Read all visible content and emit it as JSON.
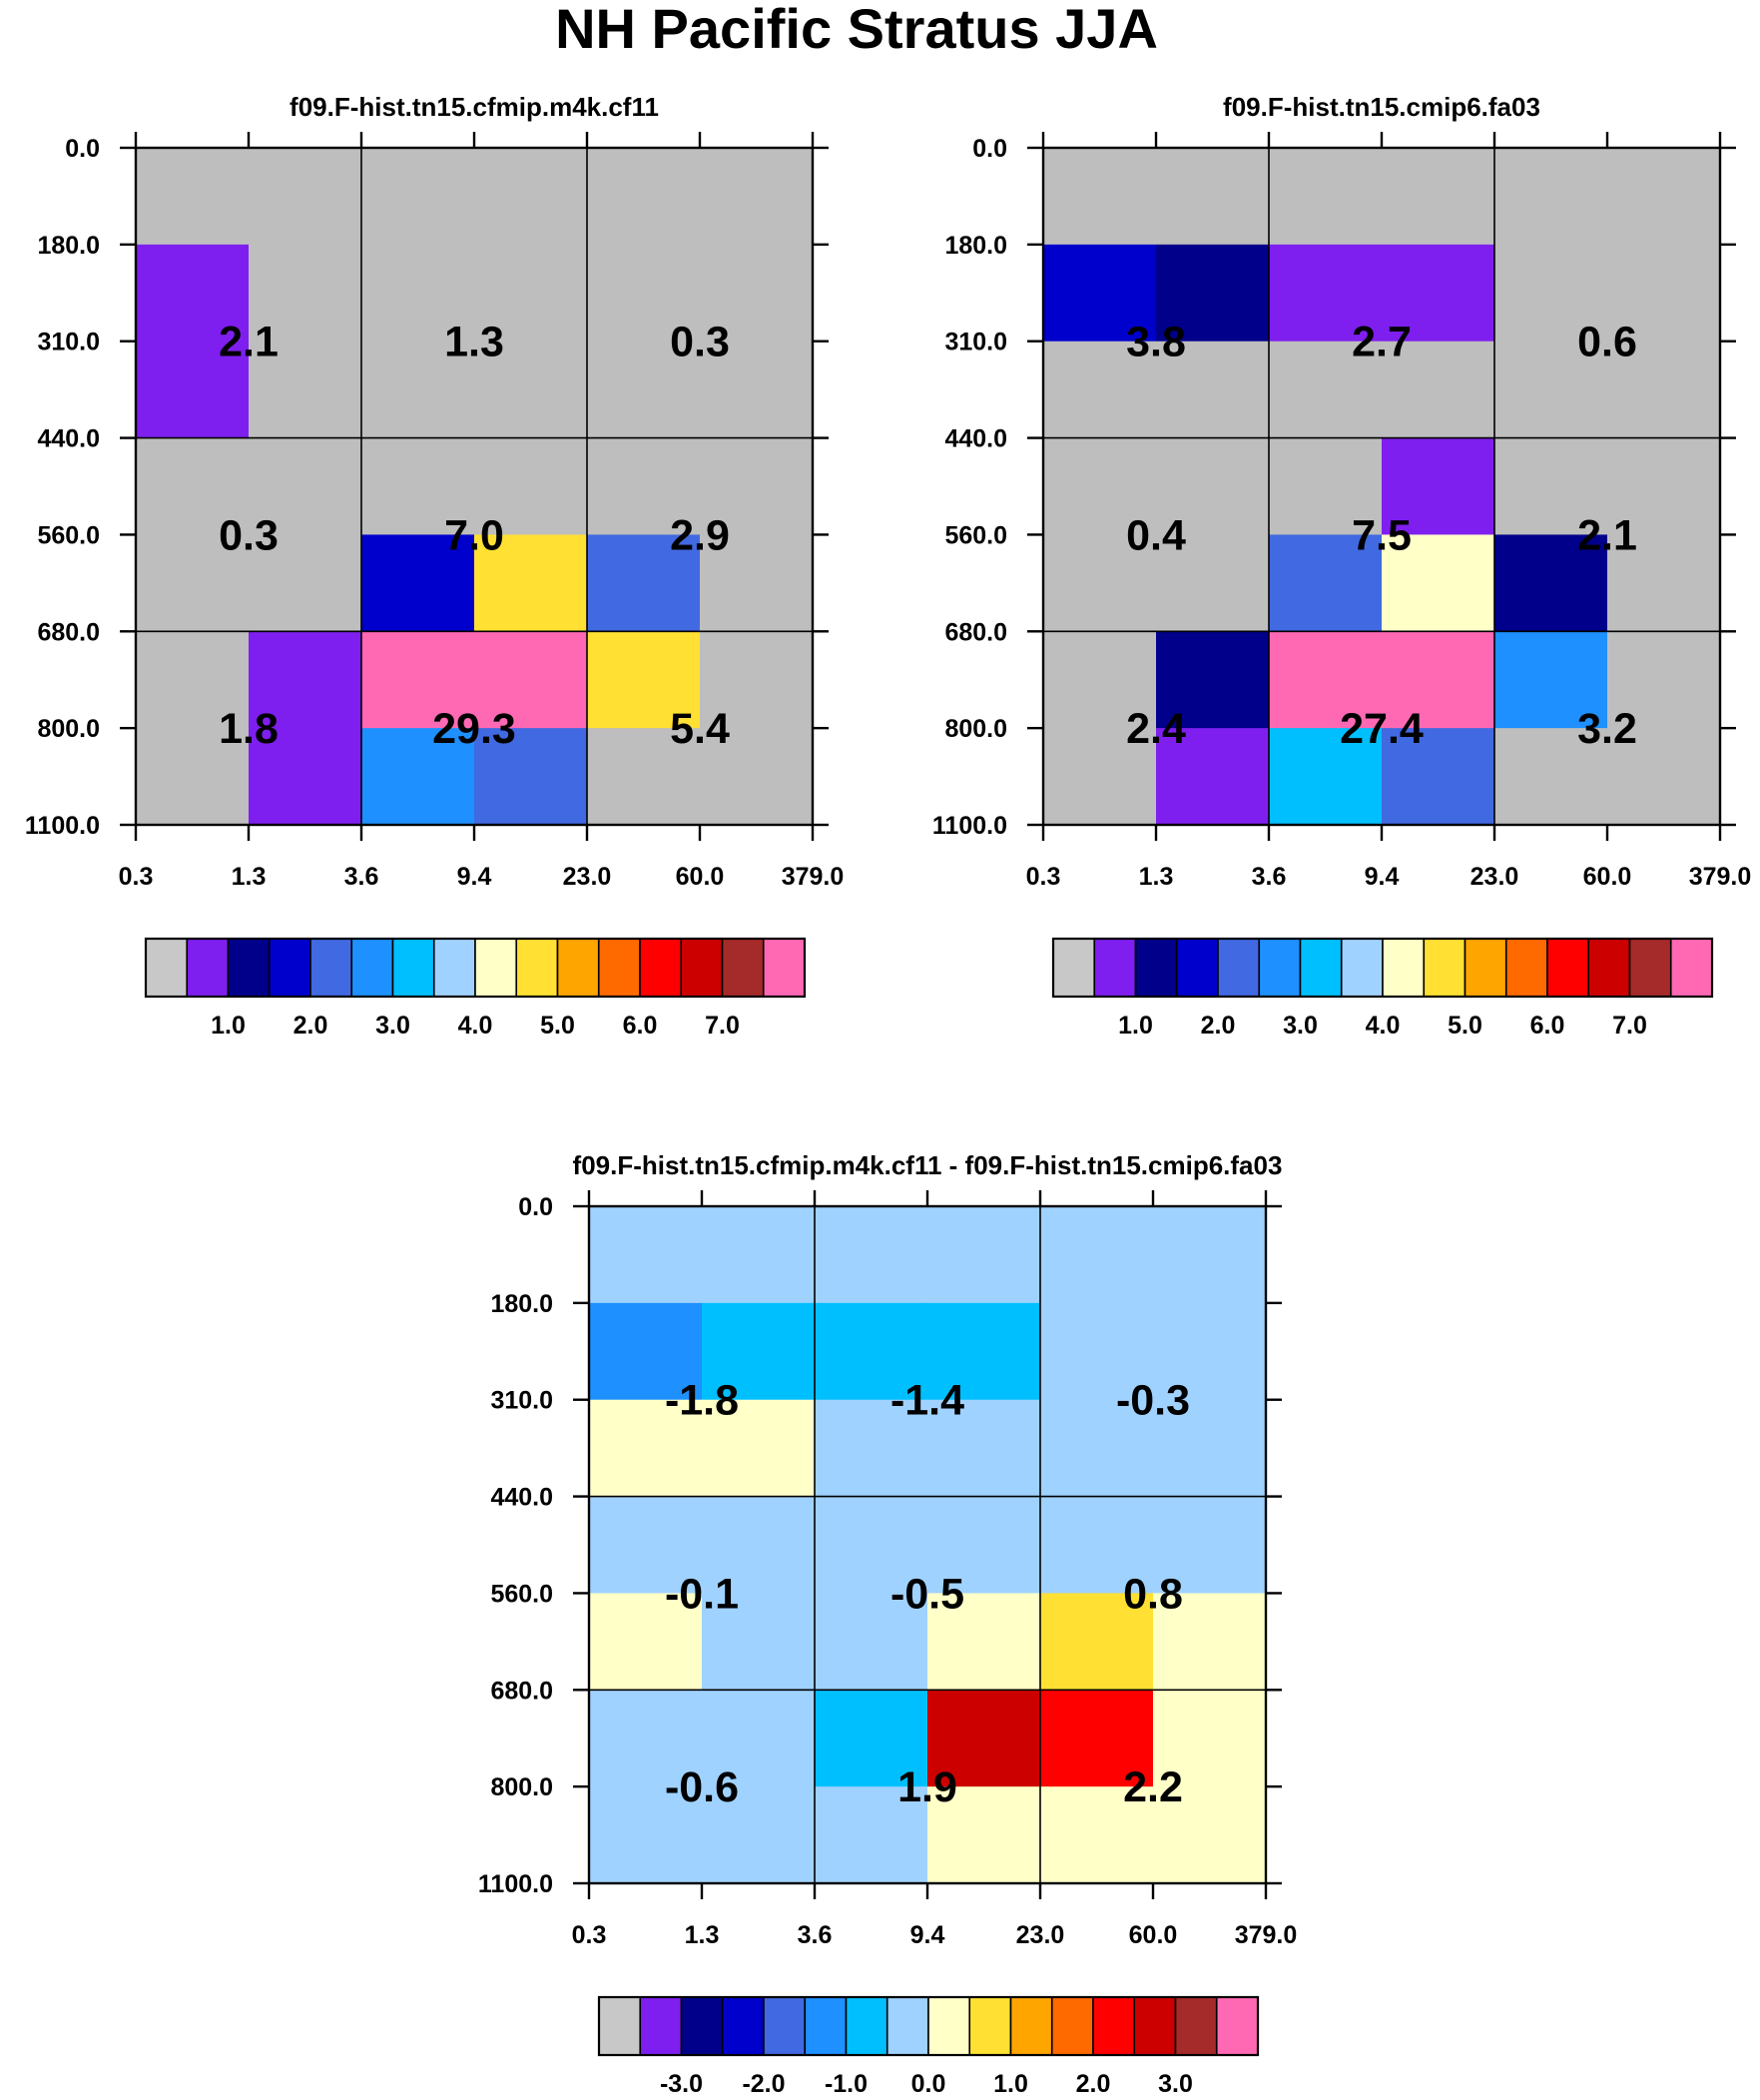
{
  "figure": {
    "title": "NH Pacific Stratus JJA"
  },
  "chart_data": [
    {
      "type": "heatmap",
      "title": "f09.F-hist.tn15.cfmip.m4k.cf11",
      "xlabel": "",
      "ylabel": "",
      "x_tick_labels": [
        "0.3",
        "1.3",
        "3.6",
        "9.4",
        "23.0",
        "60.0",
        "379.0"
      ],
      "y_tick_labels": [
        "0.0",
        "180.0",
        "310.0",
        "440.0",
        "560.0",
        "680.0",
        "800.0",
        "1100.0"
      ],
      "grid": true,
      "block_labels": [
        [
          "2.1",
          "1.3",
          "0.3"
        ],
        [
          "0.3",
          "7.0",
          "2.9"
        ],
        [
          "1.8",
          "29.3",
          "5.4"
        ]
      ],
      "cell_colors": [
        [
          "#BEBEBE",
          "#BEBEBE",
          "#BEBEBE",
          "#BEBEBE",
          "#BEBEBE",
          "#BEBEBE"
        ],
        [
          "#7F1FEF",
          "#BEBEBE",
          "#BEBEBE",
          "#BEBEBE",
          "#BEBEBE",
          "#BEBEBE"
        ],
        [
          "#7F1FEF",
          "#BEBEBE",
          "#BEBEBE",
          "#BEBEBE",
          "#BEBEBE",
          "#BEBEBE"
        ],
        [
          "#BEBEBE",
          "#BEBEBE",
          "#BEBEBE",
          "#BEBEBE",
          "#BEBEBE",
          "#BEBEBE"
        ],
        [
          "#BEBEBE",
          "#BEBEBE",
          "#0000CD",
          "#FFE033",
          "#4169E1",
          "#BEBEBE"
        ],
        [
          "#BEBEBE",
          "#7F1FEF",
          "#FF69B4",
          "#FF69B4",
          "#FFE033",
          "#BEBEBE"
        ],
        [
          "#BEBEBE",
          "#7F1FEF",
          "#1E90FF",
          "#4169E1",
          "#BEBEBE",
          "#BEBEBE"
        ]
      ],
      "colorbar": {
        "colors": [
          "#C8C8C8",
          "#7F1FEF",
          "#00008B",
          "#0000CD",
          "#4169E1",
          "#1E90FF",
          "#00BFFF",
          "#A0D2FF",
          "#FFFFC8",
          "#FFE033",
          "#FFA500",
          "#FF6A00",
          "#FF0000",
          "#CD0000",
          "#A52A2A",
          "#FF69B4"
        ],
        "labels": [
          "1.0",
          "2.0",
          "3.0",
          "4.0",
          "5.0",
          "6.0",
          "7.0"
        ],
        "label_start_boundary": 2,
        "label_step": 2
      }
    },
    {
      "type": "heatmap",
      "title": "f09.F-hist.tn15.cmip6.fa03",
      "xlabel": "",
      "ylabel": "",
      "x_tick_labels": [
        "0.3",
        "1.3",
        "3.6",
        "9.4",
        "23.0",
        "60.0",
        "379.0"
      ],
      "y_tick_labels": [
        "0.0",
        "180.0",
        "310.0",
        "440.0",
        "560.0",
        "680.0",
        "800.0",
        "1100.0"
      ],
      "grid": true,
      "block_labels": [
        [
          "3.8",
          "2.7",
          "0.6"
        ],
        [
          "0.4",
          "7.5",
          "2.1"
        ],
        [
          "2.4",
          "27.4",
          "3.2"
        ]
      ],
      "cell_colors": [
        [
          "#BEBEBE",
          "#BEBEBE",
          "#BEBEBE",
          "#BEBEBE",
          "#BEBEBE",
          "#BEBEBE"
        ],
        [
          "#0000CD",
          "#00008B",
          "#7F1FEF",
          "#7F1FEF",
          "#BEBEBE",
          "#BEBEBE"
        ],
        [
          "#BEBEBE",
          "#BEBEBE",
          "#BEBEBE",
          "#BEBEBE",
          "#BEBEBE",
          "#BEBEBE"
        ],
        [
          "#BEBEBE",
          "#BEBEBE",
          "#BEBEBE",
          "#7F1FEF",
          "#BEBEBE",
          "#BEBEBE"
        ],
        [
          "#BEBEBE",
          "#BEBEBE",
          "#4169E1",
          "#FFFFC8",
          "#00008B",
          "#BEBEBE"
        ],
        [
          "#BEBEBE",
          "#00008B",
          "#FF69B4",
          "#FF69B4",
          "#1E90FF",
          "#BEBEBE"
        ],
        [
          "#BEBEBE",
          "#7F1FEF",
          "#00BFFF",
          "#4169E1",
          "#BEBEBE",
          "#BEBEBE"
        ]
      ],
      "colorbar": {
        "colors": [
          "#C8C8C8",
          "#7F1FEF",
          "#00008B",
          "#0000CD",
          "#4169E1",
          "#1E90FF",
          "#00BFFF",
          "#A0D2FF",
          "#FFFFC8",
          "#FFE033",
          "#FFA500",
          "#FF6A00",
          "#FF0000",
          "#CD0000",
          "#A52A2A",
          "#FF69B4"
        ],
        "labels": [
          "1.0",
          "2.0",
          "3.0",
          "4.0",
          "5.0",
          "6.0",
          "7.0"
        ],
        "label_start_boundary": 2,
        "label_step": 2
      }
    },
    {
      "type": "heatmap",
      "title": "f09.F-hist.tn15.cfmip.m4k.cf11 - f09.F-hist.tn15.cmip6.fa03",
      "xlabel": "",
      "ylabel": "",
      "x_tick_labels": [
        "0.3",
        "1.3",
        "3.6",
        "9.4",
        "23.0",
        "60.0",
        "379.0"
      ],
      "y_tick_labels": [
        "0.0",
        "180.0",
        "310.0",
        "440.0",
        "560.0",
        "680.0",
        "800.0",
        "1100.0"
      ],
      "grid": true,
      "block_labels": [
        [
          "-1.8",
          "-1.4",
          "-0.3"
        ],
        [
          "-0.1",
          "-0.5",
          "0.8"
        ],
        [
          "-0.6",
          "1.9",
          "2.2"
        ]
      ],
      "cell_colors": [
        [
          "#A0D2FF",
          "#A0D2FF",
          "#A0D2FF",
          "#A0D2FF",
          "#A0D2FF",
          "#A0D2FF"
        ],
        [
          "#1E90FF",
          "#00BFFF",
          "#00BFFF",
          "#00BFFF",
          "#A0D2FF",
          "#A0D2FF"
        ],
        [
          "#FFFFC8",
          "#FFFFC8",
          "#A0D2FF",
          "#A0D2FF",
          "#A0D2FF",
          "#A0D2FF"
        ],
        [
          "#A0D2FF",
          "#A0D2FF",
          "#A0D2FF",
          "#A0D2FF",
          "#A0D2FF",
          "#A0D2FF"
        ],
        [
          "#FFFFC8",
          "#A0D2FF",
          "#A0D2FF",
          "#FFFFC8",
          "#FFE033",
          "#FFFFC8"
        ],
        [
          "#A0D2FF",
          "#A0D2FF",
          "#00BFFF",
          "#CD0000",
          "#FF0000",
          "#FFFFC8"
        ],
        [
          "#A0D2FF",
          "#A0D2FF",
          "#A0D2FF",
          "#FFFFC8",
          "#FFFFC8",
          "#FFFFC8"
        ]
      ],
      "colorbar": {
        "colors": [
          "#C8C8C8",
          "#7F1FEF",
          "#00008B",
          "#0000CD",
          "#4169E1",
          "#1E90FF",
          "#00BFFF",
          "#A0D2FF",
          "#FFFFC8",
          "#FFE033",
          "#FFA500",
          "#FF6A00",
          "#FF0000",
          "#CD0000",
          "#A52A2A",
          "#FF69B4"
        ],
        "labels": [
          "-3.0",
          "-2.0",
          "-1.0",
          "0.0",
          "1.0",
          "2.0",
          "3.0"
        ],
        "label_start_boundary": 2,
        "label_step": 2
      }
    }
  ]
}
